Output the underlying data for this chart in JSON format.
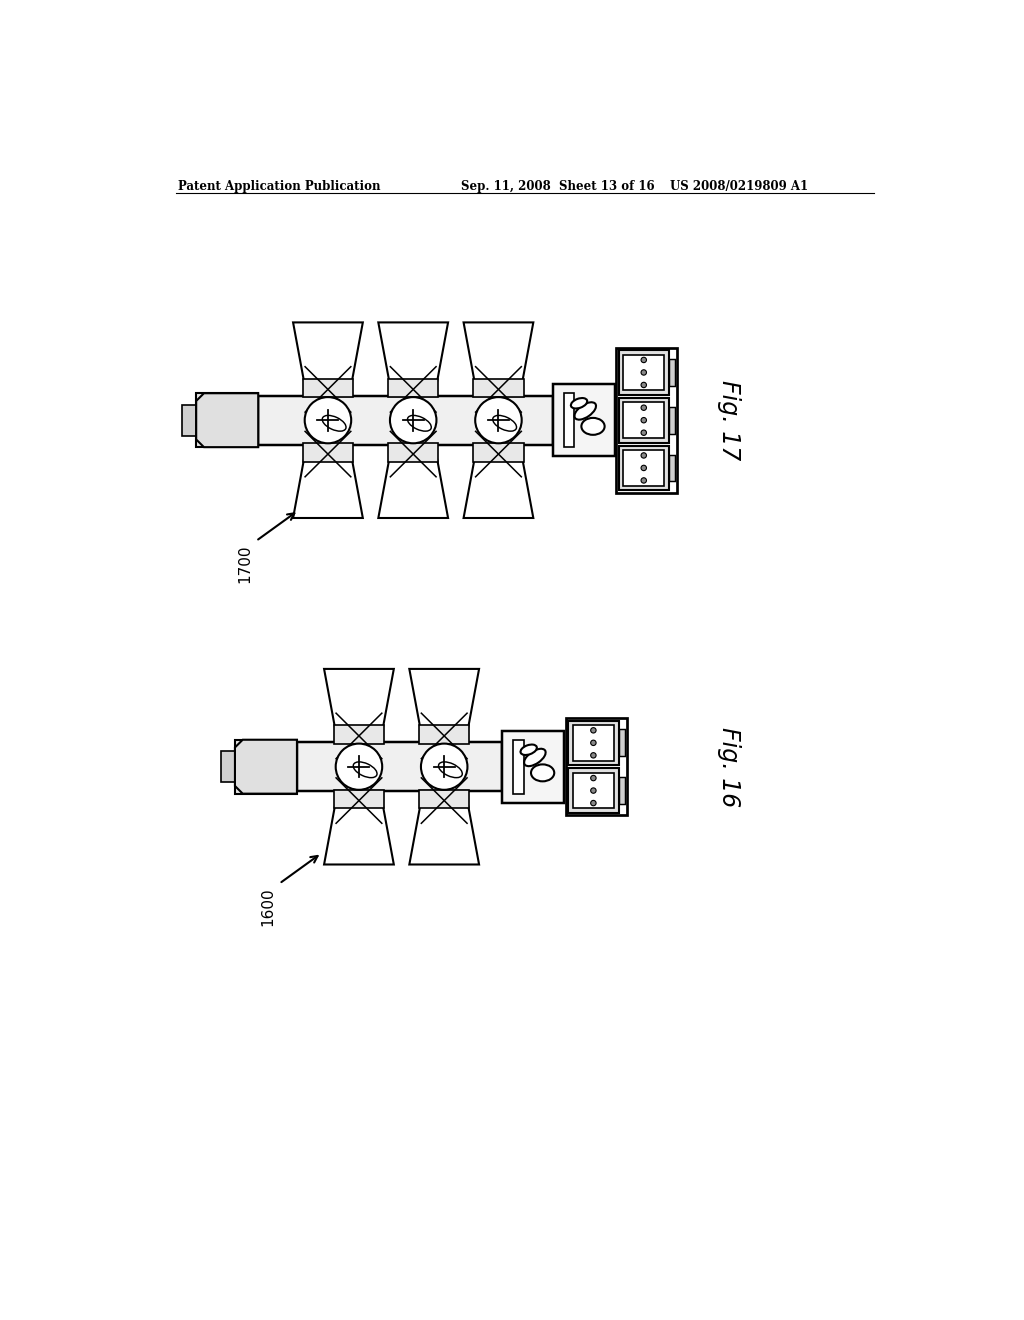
{
  "bg_color": "#ffffff",
  "header_left": "Patent Application Publication",
  "header_center": "Sep. 11, 2008  Sheet 13 of 16",
  "header_right": "US 2008/0219809 A1",
  "fig17_label": "Fig. 17",
  "fig16_label": "Fig. 16",
  "label_1700": "1700",
  "label_1600": "1600",
  "line_color": "#000000",
  "line_width": 1.5,
  "fill_color": "#ffffff",
  "gray_light": "#f0f0f0",
  "gray_med": "#d8d8d8"
}
